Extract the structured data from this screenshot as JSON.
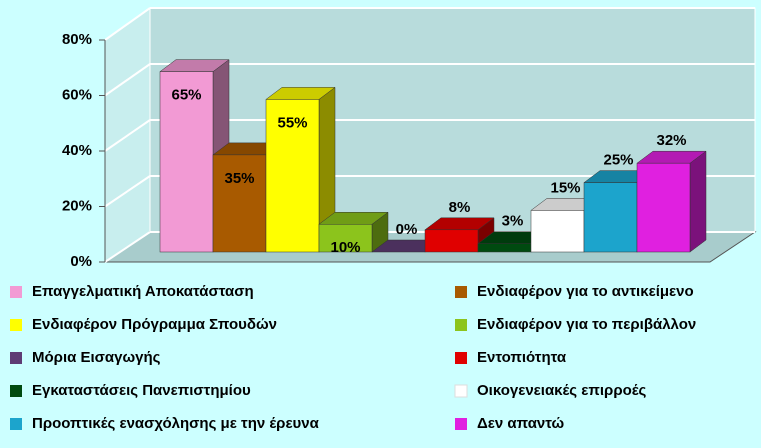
{
  "chart_data": {
    "type": "bar3d",
    "ylim": [
      0,
      80
    ],
    "yticks": [
      {
        "value": 0,
        "label": "0%"
      },
      {
        "value": 20,
        "label": "20%"
      },
      {
        "value": 40,
        "label": "40%"
      },
      {
        "value": 60,
        "label": "60%"
      },
      {
        "value": 80,
        "label": "80%"
      }
    ],
    "grid": true,
    "legend": "bottom",
    "series": [
      {
        "name": "Επαγγελματική Αποκατάσταση",
        "color": "#f29ad4",
        "values": [
          65
        ],
        "value_labels": [
          "65%"
        ]
      },
      {
        "name": "Ενδιαφέρον για το αντικείμενο",
        "color": "#a85a00",
        "values": [
          35
        ],
        "value_labels": [
          "35%"
        ]
      },
      {
        "name": "Ενδιαφέρον Πρόγραμμα Σπουδών",
        "color": "#ffff00",
        "values": [
          55
        ],
        "value_labels": [
          "55%"
        ]
      },
      {
        "name": "Ενδιαφέρον για το περιβάλλον",
        "color": "#8cc41c",
        "values": [
          10
        ],
        "value_labels": [
          "10%"
        ]
      },
      {
        "name": "Μόρια Εισαγωγής",
        "color": "#5e3c74",
        "values": [
          0
        ],
        "value_labels": [
          "0%"
        ]
      },
      {
        "name": "Εντοπιότητα",
        "color": "#e00000",
        "values": [
          8
        ],
        "value_labels": [
          "8%"
        ]
      },
      {
        "name": "Εγκαταστάσεις Πανεπιστημίου",
        "color": "#004a10",
        "values": [
          3
        ],
        "value_labels": [
          "3%"
        ]
      },
      {
        "name": "Οικογενειακές επιρροές",
        "color": "#ffffff",
        "values": [
          15
        ],
        "value_labels": [
          "15%"
        ]
      },
      {
        "name": "Προοπτικές ενασχόλησης με την έρευνα",
        "color": "#1ca4cc",
        "values": [
          25
        ],
        "value_labels": [
          "25%"
        ]
      },
      {
        "name": "Δεν απαντώ",
        "color": "#e020e0",
        "values": [
          32
        ],
        "value_labels": [
          "32%"
        ]
      }
    ]
  }
}
